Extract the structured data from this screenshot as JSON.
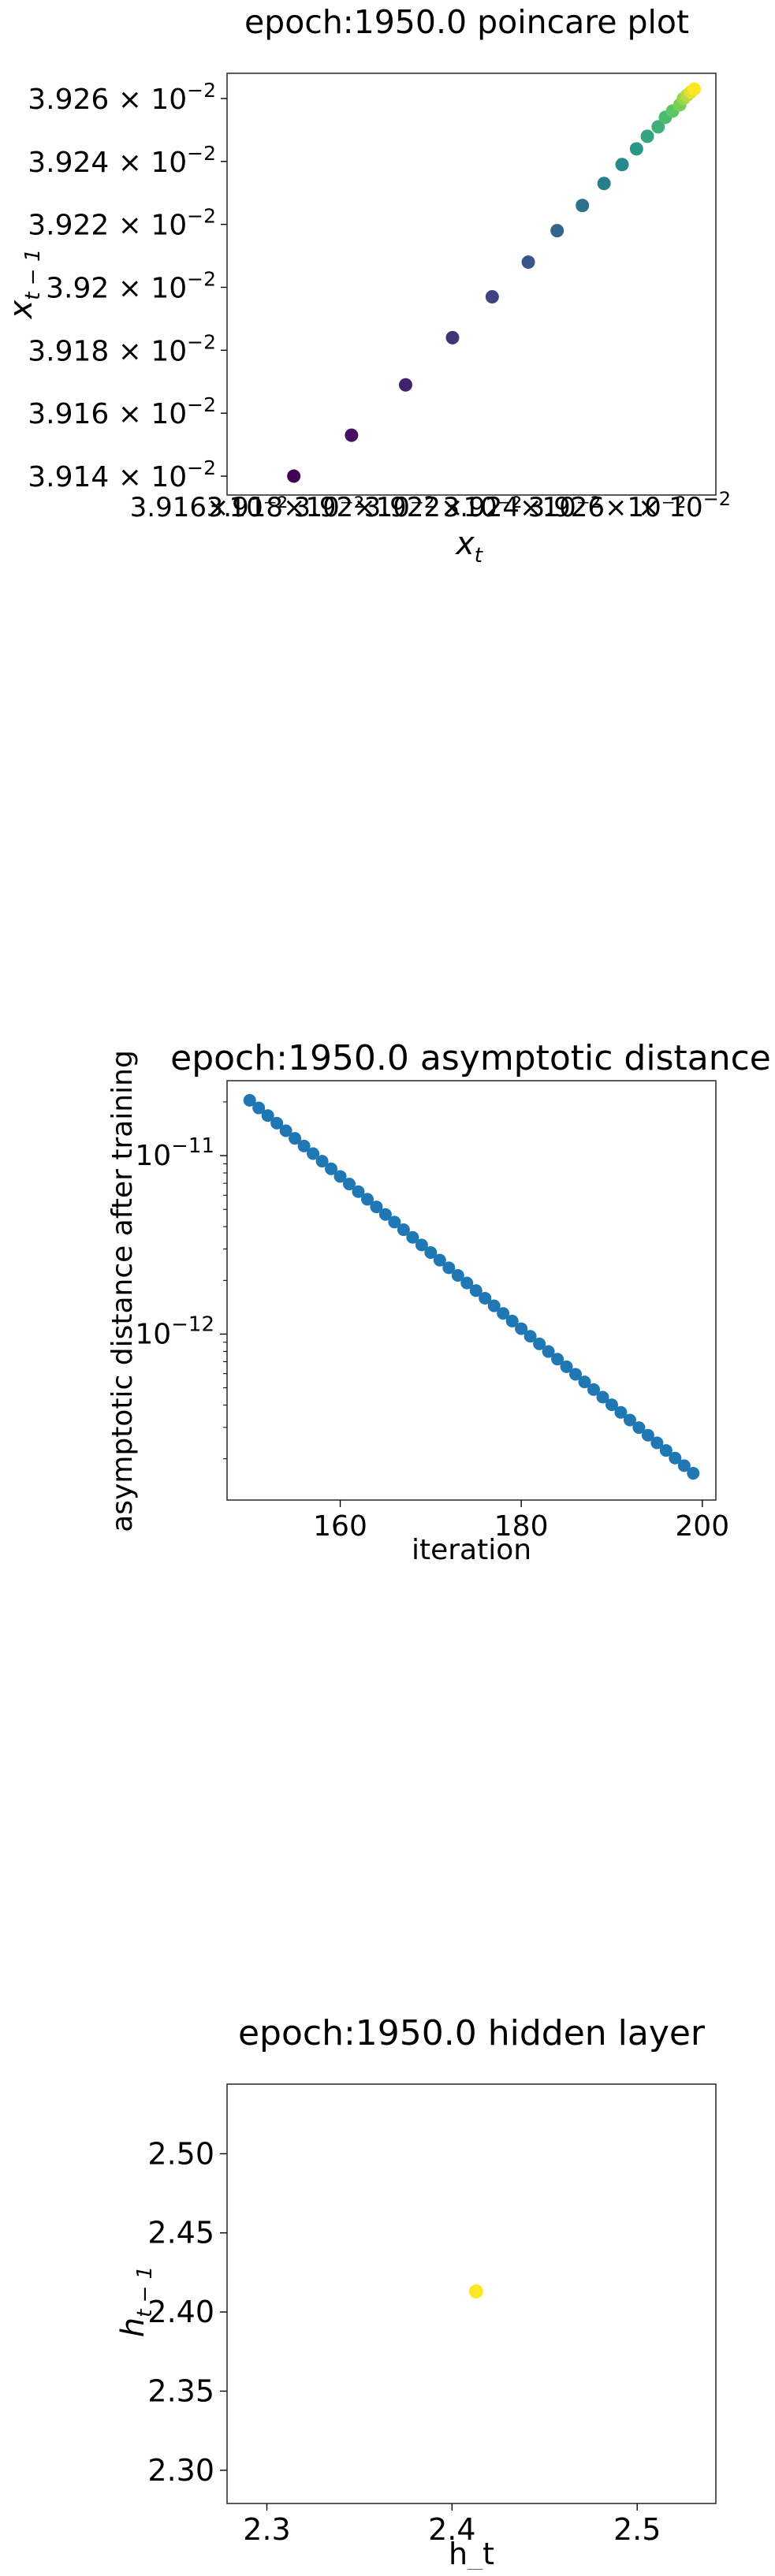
{
  "chart_data": [
    {
      "type": "scatter",
      "title": "epoch:1950.0 poincare plot",
      "xlabel": "x_t",
      "ylabel": "x_{t-1}",
      "colormap": "viridis",
      "xlim": [
        0.0391345,
        0.03927
      ],
      "ylim": [
        0.039134,
        0.039268
      ],
      "x_tick_labels": [
        "3.916×10⁻²",
        "3.918×10⁻²",
        "3.92×10⁻²",
        "3.922×10⁻²",
        "3.924×10⁻²",
        "3.926×10⁻²"
      ],
      "y_ticks": [
        {
          "value": 0.03914,
          "mantissa": "3.914"
        },
        {
          "value": 0.03916,
          "mantissa": "3.916"
        },
        {
          "value": 0.03918,
          "mantissa": "3.918"
        },
        {
          "value": 0.0392,
          "mantissa": "3.92"
        },
        {
          "value": 0.03922,
          "mantissa": "3.922"
        },
        {
          "value": 0.03924,
          "mantissa": "3.924"
        },
        {
          "value": 0.03926,
          "mantissa": "3.926"
        }
      ],
      "tick_multiplier": "× 10",
      "tick_exponent": "−2",
      "x": [
        0.039153,
        0.039169,
        0.039184,
        0.039197,
        0.039208,
        0.039218,
        0.039226,
        0.039233,
        0.039239,
        0.039244,
        0.039248,
        0.039251,
        0.039254,
        0.039256,
        0.039258,
        0.03926,
        0.039261,
        0.039262,
        0.039263,
        0.039264
      ],
      "y": [
        0.03914,
        0.039153,
        0.039169,
        0.039184,
        0.039197,
        0.039208,
        0.039218,
        0.039226,
        0.039233,
        0.039239,
        0.039244,
        0.039248,
        0.039251,
        0.039254,
        0.039256,
        0.039258,
        0.03926,
        0.039261,
        0.039262,
        0.039263
      ],
      "grid": false
    },
    {
      "type": "scatter",
      "title": "epoch:1950.0 asymptotic distance",
      "xlabel": "iteration",
      "ylabel": "asymptotic distance after training",
      "yscale": "log",
      "xlim": [
        147.5,
        201.5
      ],
      "ylim_log10": [
        -12.93,
        -10.58
      ],
      "x_ticks": [
        160,
        180,
        200
      ],
      "y_ticks": [
        {
          "exp": -11,
          "base": "10",
          "sup": "−11"
        },
        {
          "exp": -12,
          "base": "10",
          "sup": "−12"
        }
      ],
      "color": "#1f77b4",
      "x_start": 150,
      "x_end": 199,
      "log10_y_start": -10.69,
      "log10_y_end": -12.78,
      "grid": false
    },
    {
      "type": "scatter",
      "title": "epoch:1950.0 hidden layer",
      "xlabel": "h_t",
      "ylabel": "h_{t-1}",
      "xlim": [
        2.2785,
        2.5425
      ],
      "ylim": [
        2.279,
        2.544
      ],
      "x_ticks": [
        "2.3",
        "2.4",
        "2.5"
      ],
      "y_ticks": [
        "2.30",
        "2.35",
        "2.40",
        "2.45",
        "2.50"
      ],
      "points": [
        {
          "x": 2.413,
          "y": 2.413
        }
      ],
      "color": "#fde725",
      "grid": false
    }
  ]
}
